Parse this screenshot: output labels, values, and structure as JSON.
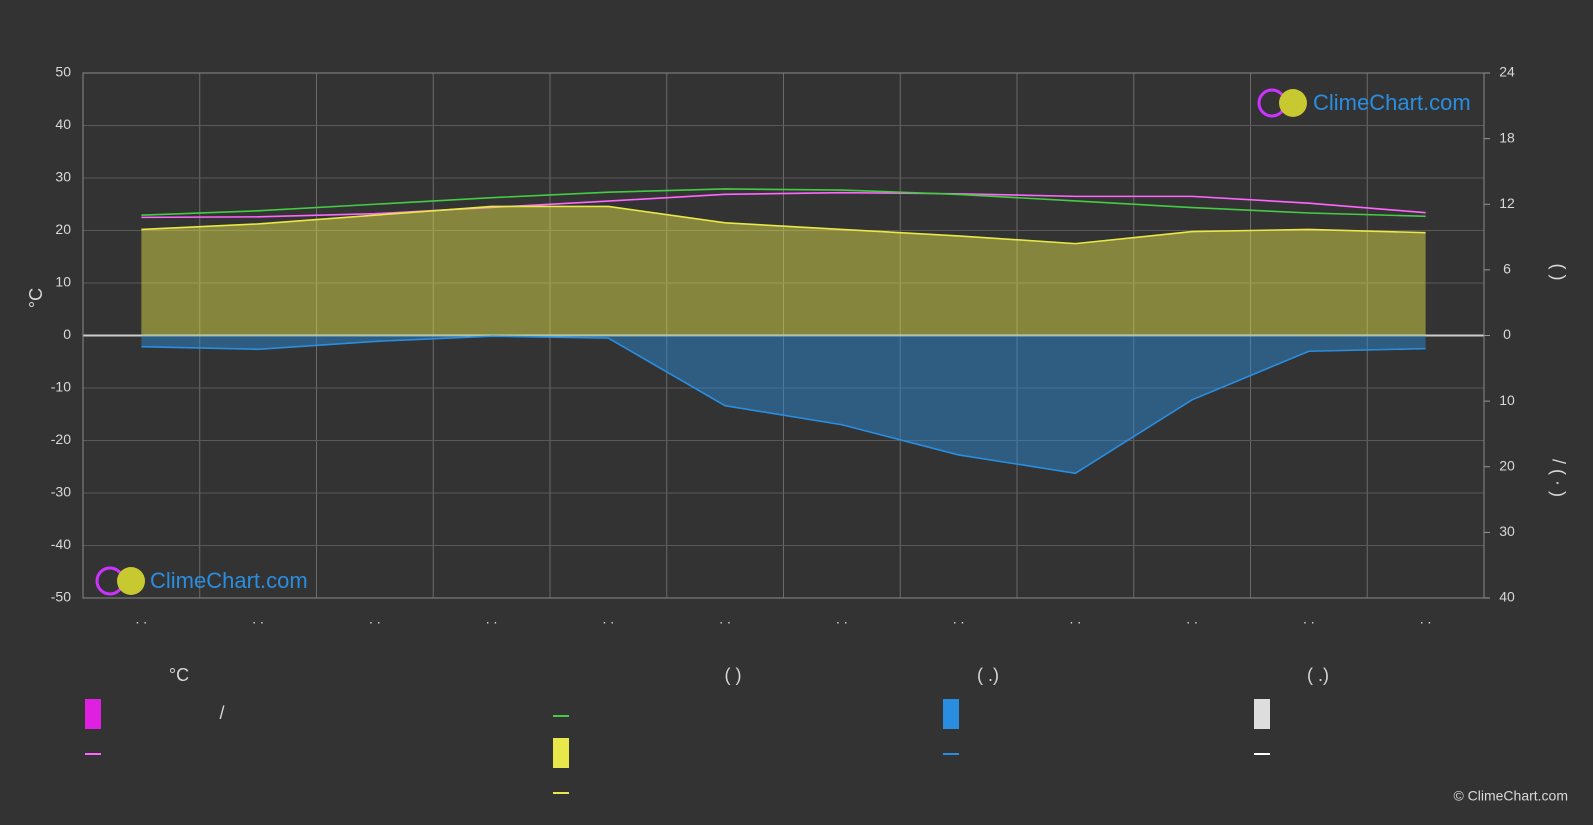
{
  "chart_data": {
    "type": "line",
    "y_label": "°C",
    "y2_label": "(        )",
    "y3_label": "/        (  ·  )",
    "watermark": "ClimeChart.com",
    "copyright": "© ClimeChart.com",
    "categories": [
      ". .",
      ". .",
      ". .",
      ". .",
      ". .",
      ". .",
      ". .",
      ". .",
      ". .",
      ". .",
      ". .",
      ". ."
    ],
    "ylim": [
      -50,
      50
    ],
    "yticks": [
      -50,
      -40,
      -30,
      -20,
      -10,
      0,
      10,
      20,
      30,
      40,
      50
    ],
    "y2lim": [
      0,
      24
    ],
    "y2ticks": [
      0,
      6,
      12,
      18,
      24
    ],
    "y3lim": [
      0,
      40
    ],
    "y3ticks": [
      10,
      20,
      30,
      40
    ],
    "grid": true,
    "series": [
      {
        "color": "#ff66ff",
        "axis": "y",
        "values": [
          22.5,
          22.6,
          23.2,
          24.4,
          25.6,
          26.9,
          27.2,
          27.0,
          26.5,
          26.5,
          25.2,
          23.4
        ]
      },
      {
        "color": "#44cc44",
        "axis": "y2",
        "values": [
          11.0,
          11.4,
          12.0,
          12.6,
          13.1,
          13.4,
          13.3,
          12.9,
          12.3,
          11.7,
          11.2,
          10.9
        ]
      },
      {
        "color": "#e8e84a",
        "axis": "y2",
        "area": true,
        "values": [
          9.7,
          10.2,
          11.0,
          11.8,
          11.8,
          10.3,
          9.7,
          9.1,
          8.4,
          9.5,
          9.7,
          9.4
        ]
      },
      {
        "color": "#2a8ee0",
        "axis": "y3",
        "area": true,
        "values": [
          1.7,
          2.1,
          0.9,
          0.1,
          0.4,
          10.7,
          13.6,
          18.2,
          21.0,
          9.8,
          2.4,
          2.0
        ]
      }
    ],
    "legend": {
      "headers": [
        "°C",
        "(        )",
        "(   .)",
        "(   .)"
      ],
      "note": "/"
    }
  }
}
